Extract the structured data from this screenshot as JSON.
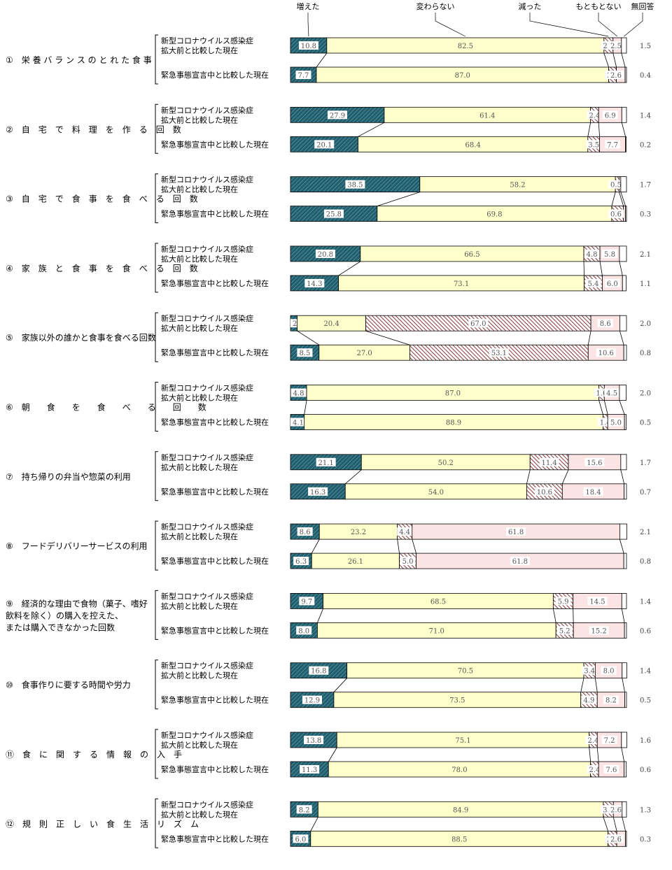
{
  "chart_data": {
    "type": "bar",
    "stacked": true,
    "orientation": "horizontal",
    "percent": true,
    "xlim": [
      0,
      100
    ],
    "series": [
      {
        "name": "増えた",
        "color": "#1f5f6e"
      },
      {
        "name": "変わらない",
        "color": "#ffffcc"
      },
      {
        "name": "減った",
        "color": "#8b3a3a"
      },
      {
        "name": "もともとない",
        "color": "#fce4e4"
      },
      {
        "name": "無回答",
        "color": "#ffffff"
      }
    ],
    "row_labels": [
      "新型コロナウイルス感染症\n拡大前と比較した現在",
      "緊急事態宣言中と比較した現在"
    ],
    "categories": [
      {
        "label": "①　栄 養 バ ラ ン ス の と れ た 食 事",
        "rows": [
          [
            10.8,
            82.5,
            2.7,
            2.5,
            1.5
          ],
          [
            7.7,
            87.0,
            2.3,
            2.6,
            0.4
          ]
        ]
      },
      {
        "label": "②　自　宅　で　料　理　を　作　る　回　数",
        "rows": [
          [
            27.9,
            61.4,
            2.4,
            6.9,
            1.4
          ],
          [
            20.1,
            68.4,
            3.5,
            7.7,
            0.2
          ]
        ]
      },
      {
        "label": "③　自　宅　で　食　事　を　食　べ　る　回　数",
        "rows": [
          [
            38.5,
            58.2,
            1.1,
            0.5,
            1.7
          ],
          [
            25.8,
            69.8,
            3.5,
            0.6,
            0.3
          ]
        ]
      },
      {
        "label": "④　家　族　と　食　事　を　食　べ　る　回　数",
        "rows": [
          [
            20.8,
            66.5,
            4.8,
            5.8,
            2.1
          ],
          [
            14.3,
            73.1,
            5.4,
            6.0,
            1.1
          ]
        ]
      },
      {
        "label": "⑤　家族以外の誰かと食事を食べる回数",
        "rows": [
          [
            2.0,
            20.4,
            67.0,
            8.6,
            2.0
          ],
          [
            8.5,
            27.0,
            53.1,
            10.6,
            0.8
          ]
        ]
      },
      {
        "label": "⑥　朝　　食　　を　　食　　べ　　る　　回　　数",
        "rows": [
          [
            4.8,
            87.0,
            1.6,
            4.5,
            2.0
          ],
          [
            4.1,
            88.9,
            1.4,
            5.0,
            0.5
          ]
        ]
      },
      {
        "label": "⑦　持ち帰りの弁当や惣菜の利用",
        "rows": [
          [
            21.1,
            50.2,
            11.4,
            15.6,
            1.7
          ],
          [
            16.3,
            54.0,
            10.6,
            18.4,
            0.7
          ]
        ]
      },
      {
        "label": "⑧　フードデリバリーサービスの利用",
        "rows": [
          [
            8.6,
            23.2,
            4.4,
            61.8,
            2.1
          ],
          [
            6.3,
            26.1,
            5.0,
            61.8,
            0.8
          ]
        ]
      },
      {
        "label": "⑨　経済的な理由で食物（菓子、嗜好\n飲料を除く）の購入を控えた、\nまたは購入できなかった回数",
        "rows": [
          [
            9.7,
            68.5,
            5.9,
            14.5,
            1.4
          ],
          [
            8.0,
            71.0,
            5.2,
            15.2,
            0.6
          ]
        ]
      },
      {
        "label": "⑩　食事作りに要する時間や労力",
        "rows": [
          [
            16.8,
            70.5,
            3.4,
            8.0,
            1.4
          ],
          [
            12.9,
            73.5,
            4.9,
            8.2,
            0.5
          ]
        ]
      },
      {
        "label": "⑪　食　に　関　す　る　情　報　の　入　手",
        "rows": [
          [
            13.8,
            75.1,
            2.4,
            7.2,
            1.6
          ],
          [
            11.3,
            78.0,
            2.4,
            7.6,
            0.6
          ]
        ]
      },
      {
        "label": "⑫　規　則　正　し　い　食　生　活　リ　ズ　ム",
        "rows": [
          [
            8.2,
            84.9,
            3.0,
            2.6,
            1.3
          ],
          [
            6.0,
            88.5,
            2.6,
            2.6,
            0.3
          ]
        ]
      }
    ]
  }
}
